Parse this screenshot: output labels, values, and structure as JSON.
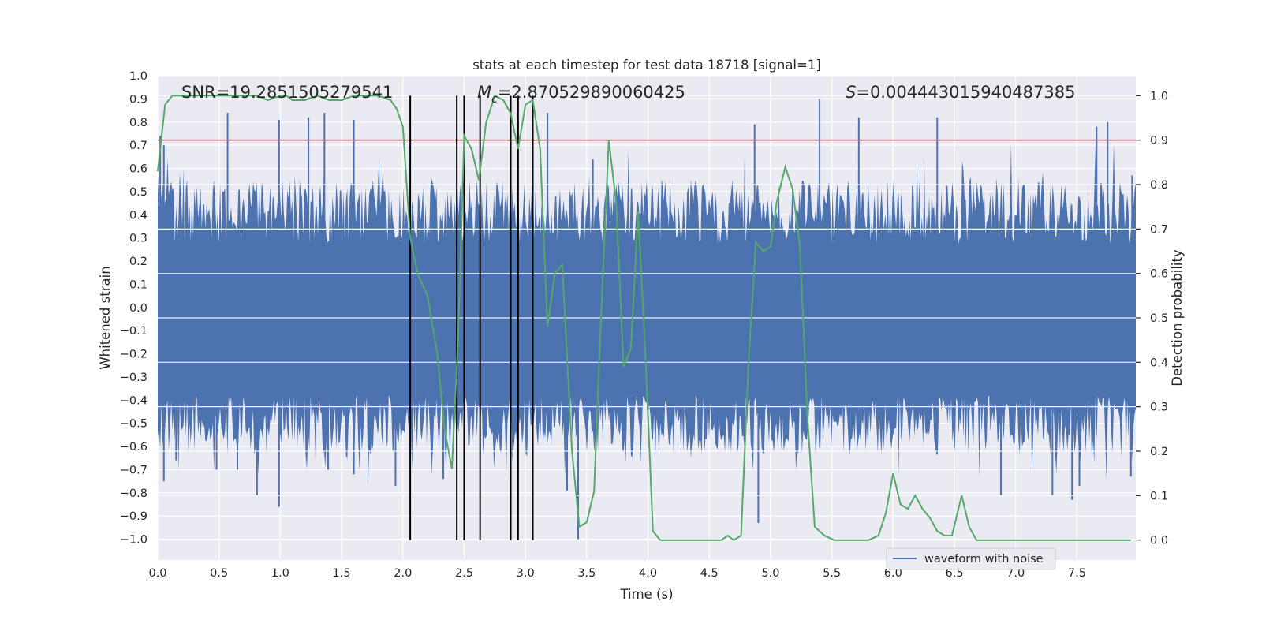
{
  "chart_data": {
    "type": "line",
    "title": "stats at each timestep for test data 18718 [signal=1]",
    "xlabel": "Time (s)",
    "ylabel": "Whitened strain",
    "y2label": "Detection probability",
    "xlim": [
      0.0,
      7.98
    ],
    "ylim": [
      -1.09,
      1.0
    ],
    "y2lim": [
      -0.045,
      1.045
    ],
    "x_ticks": [
      0.0,
      0.5,
      1.0,
      1.5,
      2.0,
      2.5,
      3.0,
      3.5,
      4.0,
      4.5,
      5.0,
      5.5,
      6.0,
      6.5,
      7.0,
      7.5
    ],
    "x_tick_labels": [
      "0.0",
      "0.5",
      "1.0",
      "1.5",
      "2.0",
      "2.5",
      "3.0",
      "3.5",
      "4.0",
      "4.5",
      "5.0",
      "5.5",
      "6.0",
      "6.5",
      "7.0",
      "7.5"
    ],
    "y_ticks": [
      -1.0,
      -0.9,
      -0.8,
      -0.7,
      -0.6,
      -0.5,
      -0.4,
      -0.3,
      -0.2,
      -0.1,
      0.0,
      0.1,
      0.2,
      0.3,
      0.4,
      0.5,
      0.6,
      0.7,
      0.8,
      0.9,
      1.0
    ],
    "y_tick_labels": [
      "−1.0",
      "−0.9",
      "−0.8",
      "−0.7",
      "−0.6",
      "−0.5",
      "−0.4",
      "−0.3",
      "−0.2",
      "−0.1",
      "0.0",
      "0.1",
      "0.2",
      "0.3",
      "0.4",
      "0.5",
      "0.6",
      "0.7",
      "0.8",
      "0.9",
      "1.0"
    ],
    "y2_ticks": [
      0.0,
      0.1,
      0.2,
      0.3,
      0.4,
      0.5,
      0.6,
      0.7,
      0.8,
      0.9,
      1.0
    ],
    "y2_tick_labels": [
      "0.0",
      "0.1",
      "0.2",
      "0.3",
      "0.4",
      "0.5",
      "0.6",
      "0.7",
      "0.8",
      "0.9",
      "1.0"
    ],
    "annotations": {
      "snr": "SNR=19.2851505279541",
      "mc_symbol": "M",
      "mc_sub": "c",
      "mc_value": "=2.870529890060425",
      "s_symbol": "S",
      "s_value": "=0.004443015940487385"
    },
    "legend": {
      "label": "waveform with noise",
      "location": "lower-right"
    },
    "threshold": {
      "value": 0.9,
      "axis": "y2",
      "color": "#c44e52"
    },
    "event_markers_time": [
      2.06,
      2.44,
      2.5,
      2.63,
      2.88,
      2.94,
      3.06
    ],
    "marker_y2_range": [
      0.0,
      1.0
    ],
    "waveform": {
      "name": "waveform with noise",
      "color": "#4c72b0",
      "n_samples": 800,
      "seed": 18718,
      "band_top": 0.33,
      "band_bottom": -0.43,
      "spikes": [
        [
          0.02,
          0.74
        ],
        [
          0.05,
          0.7
        ],
        [
          0.57,
          0.84
        ],
        [
          0.99,
          0.81
        ],
        [
          1.23,
          0.82
        ],
        [
          1.36,
          0.84
        ],
        [
          1.6,
          0.81
        ],
        [
          3.18,
          0.84
        ],
        [
          3.55,
          0.64
        ],
        [
          4.87,
          0.79
        ],
        [
          5.4,
          0.9
        ],
        [
          5.72,
          0.82
        ],
        [
          6.36,
          0.82
        ],
        [
          7.66,
          0.78
        ],
        [
          7.75,
          0.8
        ],
        [
          7.95,
          0.57
        ],
        [
          0.05,
          -0.75
        ],
        [
          0.15,
          -0.66
        ],
        [
          0.48,
          -0.7
        ],
        [
          0.65,
          -0.7
        ],
        [
          0.81,
          -0.81
        ],
        [
          0.99,
          -0.86
        ],
        [
          1.39,
          -0.7
        ],
        [
          1.6,
          -0.72
        ],
        [
          1.94,
          -0.77
        ],
        [
          2.33,
          -0.74
        ],
        [
          3.34,
          -0.79
        ],
        [
          3.43,
          -1.0
        ],
        [
          4.9,
          -0.93
        ],
        [
          6.88,
          -0.81
        ],
        [
          7.3,
          -0.81
        ],
        [
          7.46,
          -0.83
        ],
        [
          7.52,
          -0.77
        ],
        [
          7.94,
          -0.73
        ]
      ]
    },
    "series": [
      {
        "name": "Detection probability",
        "axis": "y2",
        "color": "#55a868",
        "x": [
          0.0,
          0.06,
          0.12,
          0.2,
          0.4,
          0.6,
          0.8,
          0.9,
          1.0,
          1.05,
          1.1,
          1.2,
          1.3,
          1.4,
          1.5,
          1.6,
          1.7,
          1.8,
          1.9,
          1.95,
          2.0,
          2.06,
          2.12,
          2.2,
          2.28,
          2.34,
          2.4,
          2.45,
          2.5,
          2.56,
          2.62,
          2.68,
          2.75,
          2.82,
          2.88,
          2.94,
          3.0,
          3.06,
          3.12,
          3.18,
          3.24,
          3.3,
          3.38,
          3.44,
          3.5,
          3.56,
          3.62,
          3.68,
          3.74,
          3.8,
          3.86,
          3.92,
          3.98,
          4.04,
          4.1,
          4.2,
          4.3,
          4.4,
          4.5,
          4.6,
          4.65,
          4.7,
          4.76,
          4.82,
          4.88,
          4.94,
          5.0,
          5.05,
          5.12,
          5.18,
          5.24,
          5.3,
          5.36,
          5.44,
          5.52,
          5.6,
          5.7,
          5.8,
          5.88,
          5.94,
          6.0,
          6.06,
          6.12,
          6.18,
          6.24,
          6.3,
          6.36,
          6.42,
          6.48,
          6.56,
          6.62,
          6.68,
          6.76,
          6.84,
          6.94,
          7.04,
          7.14,
          7.3,
          7.5,
          7.7,
          7.8,
          7.88,
          7.94
        ],
        "values": [
          0.83,
          0.98,
          1.0,
          1.0,
          1.0,
          1.0,
          1.0,
          0.99,
          1.0,
          1.0,
          0.99,
          0.99,
          1.0,
          0.99,
          0.99,
          1.0,
          1.0,
          1.0,
          0.99,
          0.97,
          0.93,
          0.68,
          0.6,
          0.55,
          0.42,
          0.25,
          0.16,
          0.45,
          0.91,
          0.88,
          0.81,
          0.94,
          1.0,
          0.99,
          0.96,
          0.88,
          0.98,
          0.99,
          0.88,
          0.48,
          0.6,
          0.62,
          0.2,
          0.03,
          0.04,
          0.11,
          0.52,
          0.9,
          0.76,
          0.39,
          0.43,
          0.74,
          0.41,
          0.02,
          0.0,
          0.0,
          0.0,
          0.0,
          0.0,
          0.0,
          0.01,
          0.0,
          0.01,
          0.4,
          0.67,
          0.65,
          0.66,
          0.76,
          0.84,
          0.79,
          0.66,
          0.28,
          0.03,
          0.01,
          0.0,
          0.0,
          0.0,
          0.0,
          0.01,
          0.06,
          0.15,
          0.08,
          0.07,
          0.1,
          0.07,
          0.05,
          0.02,
          0.01,
          0.01,
          0.1,
          0.03,
          0.0,
          0.0,
          0.0,
          0.0,
          0.0,
          0.0,
          0.0,
          0.0,
          0.0,
          0.0,
          0.0,
          0.0
        ]
      }
    ]
  }
}
